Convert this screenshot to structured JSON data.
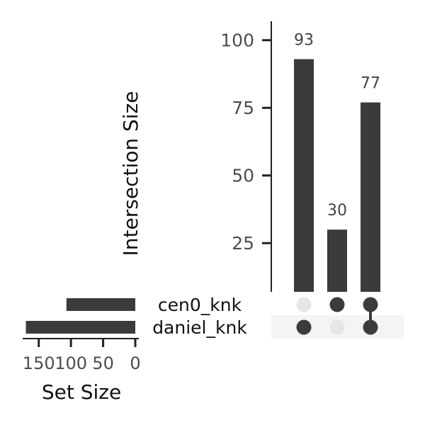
{
  "chart_data": {
    "type": "upset",
    "ylabel": "Intersection Size",
    "ylim": [
      7,
      107
    ],
    "yticks": [
      25,
      50,
      75,
      100
    ],
    "intersections": [
      {
        "sets": [
          "daniel_knk"
        ],
        "value": 93
      },
      {
        "sets": [
          "cen0_knk"
        ],
        "value": 30
      },
      {
        "sets": [
          "cen0_knk",
          "daniel_knk"
        ],
        "value": 77
      }
    ],
    "sets": [
      {
        "name": "cen0_knk",
        "size": 107
      },
      {
        "name": "daniel_knk",
        "size": 170
      }
    ],
    "set_size_label": "Set Size",
    "set_size_ticks": [
      {
        "value": 150,
        "label": "150"
      },
      {
        "value": 100,
        "label": "100"
      },
      {
        "value": 50,
        "label": "50"
      },
      {
        "value": 0,
        "label": "0"
      }
    ],
    "set_size_xlim": [
      0,
      175
    ],
    "colors": {
      "bar": "#3b3b3b",
      "dot_active": "#3b3b3b",
      "dot_inactive": "#e6e6e6",
      "stripe": "#f4f4f4",
      "axis": "#222222",
      "tick_text": "#4d4d4d"
    }
  }
}
